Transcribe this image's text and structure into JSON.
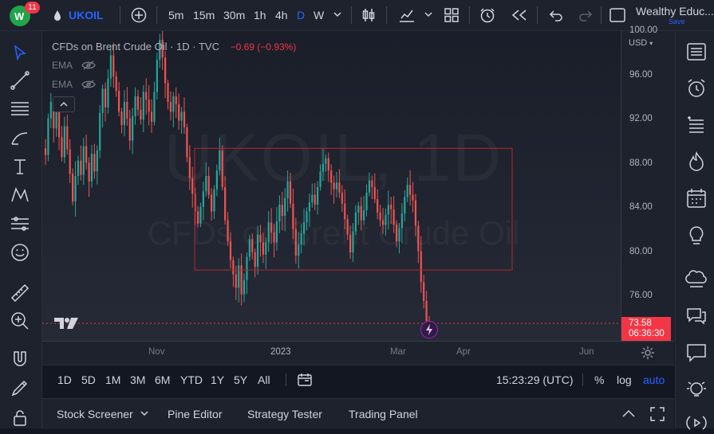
{
  "topbar": {
    "notification_count": "11",
    "symbol": "UKOIL",
    "intervals": [
      "5m",
      "15m",
      "30m",
      "1h",
      "4h",
      "D",
      "W"
    ],
    "active_interval": "D",
    "account_name": "Wealthy Educ...",
    "save_label": "Save"
  },
  "legend": {
    "title": "CFDs on Brent Crude Oil · 1D · TVC",
    "change": "−0.69 (−0.93%)",
    "indicators": [
      "EMA",
      "EMA"
    ]
  },
  "watermark": {
    "symbol": "UKOIL, 1D",
    "description": "CFDs on Brent Crude Oil"
  },
  "price_scale": {
    "currency": "USD",
    "labels": [
      "100.00",
      "96.00",
      "92.00",
      "88.00",
      "84.00",
      "80.00",
      "76.00"
    ],
    "last_price": "73.58",
    "countdown": "06:36:30"
  },
  "time_scale": {
    "labels": [
      "Nov",
      "2023",
      "Mar",
      "Apr",
      "Jun"
    ]
  },
  "range_bar": {
    "ranges": [
      "1D",
      "5D",
      "1M",
      "3M",
      "6M",
      "YTD",
      "1Y",
      "5Y",
      "All"
    ],
    "clock": "15:23:29 (UTC)",
    "percent_label": "%",
    "log_label": "log",
    "auto_label": "auto"
  },
  "bottom_panel": {
    "tabs": [
      "Stock Screener",
      "Pine Editor",
      "Strategy Tester",
      "Trading Panel"
    ]
  },
  "colors": {
    "up": "#26a69a",
    "down": "#ef5350",
    "accent": "#2962ff",
    "price_tag": "#f23645",
    "rectangle": "#b22833"
  },
  "chart_data": {
    "type": "candlestick",
    "interval": "1D",
    "ylim": [
      72.0,
      100.0
    ],
    "series": [
      {
        "values": [
          88.8,
          92.1,
          93.6,
          91.2,
          92.8,
          90.4,
          88.6,
          91.4,
          89.3,
          87.1,
          84.6,
          86.9,
          88.3,
          87.0,
          89.6,
          88.1,
          86.4,
          88.9,
          87.3,
          89.2,
          92.6,
          94.8,
          93.1,
          95.7,
          97.8,
          95.9,
          94.6,
          92.7,
          91.5,
          93.6,
          92.1,
          90.1,
          92.3,
          94.1,
          92.9,
          92.0,
          94.5,
          93.8,
          92.7,
          91.8,
          94.5,
          97.4,
          99.2,
          97.6,
          95.3,
          93.6,
          92.7,
          94.1,
          93.4,
          91.9,
          92.7,
          91.3,
          88.6,
          86.7,
          85.3,
          83.7,
          82.6,
          84.1,
          85.5,
          86.9,
          85.2,
          83.7,
          85.7,
          87.4,
          89.2,
          85.9,
          82.9,
          81.0,
          79.3,
          78.0,
          76.8,
          78.8,
          76.2,
          77.5,
          79.6,
          81.2,
          80.0,
          78.7,
          81.6,
          80.9,
          79.8,
          80.9,
          82.7,
          81.8,
          80.9,
          82.8,
          84.3,
          83.3,
          84.9,
          86.4,
          84.4,
          82.1,
          79.7,
          80.7,
          81.7,
          82.7,
          83.7,
          84.5,
          85.2,
          84.3,
          85.9,
          87.3,
          88.0,
          88.5,
          87.4,
          86.3,
          85.7,
          86.3,
          85.4,
          84.4,
          83.0,
          81.6,
          80.0,
          81.9,
          83.6,
          84.2,
          82.9,
          83.8,
          85.4,
          86.5,
          85.9,
          84.8,
          83.6,
          82.9,
          82.5,
          83.4,
          84.3,
          83.9,
          82.5,
          81.0,
          82.2,
          83.5,
          85.0,
          86.1,
          85.2,
          84.7,
          82.4,
          80.1,
          77.3,
          75.6,
          73.8,
          73.58
        ]
      }
    ],
    "annotations": [
      {
        "type": "rectangle",
        "y_top": 89.4,
        "y_bottom": 78.4
      },
      {
        "type": "horizontal_line",
        "y": 73.58
      }
    ]
  }
}
